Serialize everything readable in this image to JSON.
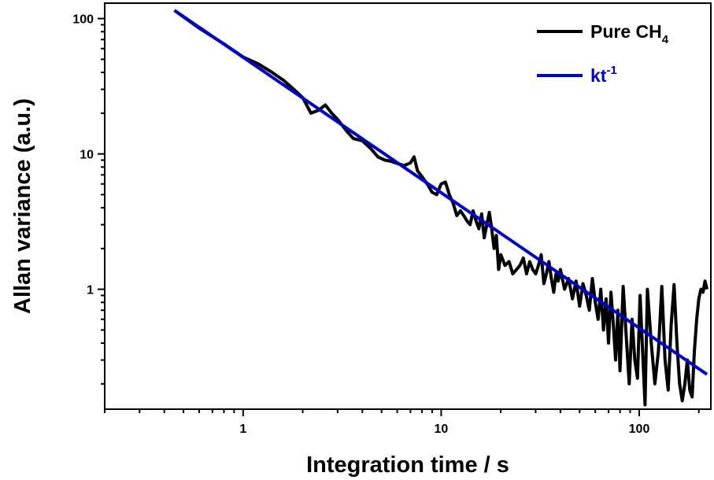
{
  "chart_data": {
    "type": "line",
    "title": "",
    "xlabel": "Integration time / s",
    "ylabel": "Allan variance (a.u.)",
    "x_scale": "log",
    "y_scale": "log",
    "xlim": [
      0.2,
      230
    ],
    "ylim": [
      0.13,
      130
    ],
    "x_ticks": [
      {
        "value": 1,
        "label": "1"
      },
      {
        "value": 10,
        "label": "10"
      },
      {
        "value": 100,
        "label": "100"
      }
    ],
    "y_ticks": [
      {
        "value": 1,
        "label": "1"
      },
      {
        "value": 10,
        "label": "10"
      },
      {
        "value": 100,
        "label": "100"
      }
    ],
    "grid": false,
    "legend": {
      "position": "top-right"
    },
    "series": [
      {
        "name": "Pure CH₄",
        "name_base": "Pure CH",
        "name_sub": "4",
        "color": "#000000",
        "x": [
          0.45,
          0.6,
          0.8,
          1.0,
          1.2,
          1.4,
          1.6,
          1.8,
          2.0,
          2.2,
          2.4,
          2.6,
          2.8,
          3.0,
          3.3,
          3.6,
          4.0,
          4.4,
          4.8,
          5.2,
          5.6,
          6.0,
          6.5,
          7.0,
          7.3,
          7.6,
          8.0,
          8.5,
          9.0,
          9.5,
          10.0,
          10.5,
          11.0,
          11.5,
          12.0,
          12.5,
          13.0,
          13.5,
          14.0,
          14.5,
          15.0,
          15.5,
          16.0,
          16.5,
          17.0,
          17.5,
          18.0,
          18.5,
          19.0,
          19.5,
          20.0,
          21,
          22,
          23,
          24,
          25,
          26,
          27,
          28,
          29,
          30,
          31,
          32,
          33,
          34,
          35,
          36,
          37,
          38,
          39,
          40,
          42,
          44,
          46,
          48,
          50,
          52,
          54,
          56,
          58,
          60,
          62,
          64,
          66,
          68,
          70,
          72,
          74,
          76,
          78,
          80,
          83,
          86,
          89,
          92,
          95,
          98,
          101,
          104,
          107,
          110,
          115,
          120,
          125,
          130,
          135,
          140,
          145,
          150,
          155,
          160,
          165,
          170,
          175,
          180,
          185,
          190,
          195,
          200,
          205,
          210,
          215,
          220
        ],
        "y": [
          115,
          85,
          65,
          52,
          46,
          40,
          35,
          30,
          26,
          20,
          21,
          23,
          20,
          18,
          15,
          13,
          12.5,
          11,
          9.5,
          9.0,
          8.8,
          8.5,
          8.2,
          8.6,
          9.5,
          7.5,
          6.8,
          6.0,
          5.2,
          5.0,
          6.0,
          6.2,
          5.0,
          4.3,
          3.5,
          3.8,
          3.5,
          3.2,
          3.0,
          3.8,
          3.2,
          2.8,
          3.6,
          2.4,
          3.0,
          3.7,
          2.8,
          2.0,
          2.5,
          1.4,
          1.8,
          1.5,
          1.6,
          1.3,
          1.4,
          1.5,
          1.7,
          1.3,
          1.6,
          1.4,
          1.3,
          1.5,
          1.8,
          1.1,
          1.3,
          1.6,
          1.2,
          0.95,
          1.3,
          1.15,
          1.4,
          1.0,
          1.2,
          0.85,
          1.15,
          0.75,
          1.1,
          0.9,
          0.7,
          1.2,
          0.8,
          0.6,
          1.0,
          0.5,
          0.85,
          0.4,
          0.95,
          0.55,
          0.3,
          0.7,
          0.25,
          1.05,
          0.45,
          0.2,
          0.6,
          0.3,
          0.22,
          0.9,
          0.35,
          0.14,
          1.0,
          0.4,
          0.2,
          0.35,
          1.05,
          0.3,
          0.18,
          0.55,
          1.08,
          0.4,
          0.2,
          0.15,
          0.2,
          0.3,
          0.18,
          0.16,
          0.35,
          0.6,
          0.85,
          1.0,
          0.95,
          1.15,
          1.0
        ]
      },
      {
        "name": "kt⁻¹",
        "name_base": "kt",
        "name_sup": "-1",
        "color": "#0000cc",
        "x": [
          0.45,
          220
        ],
        "y": [
          115,
          0.235
        ]
      }
    ]
  }
}
